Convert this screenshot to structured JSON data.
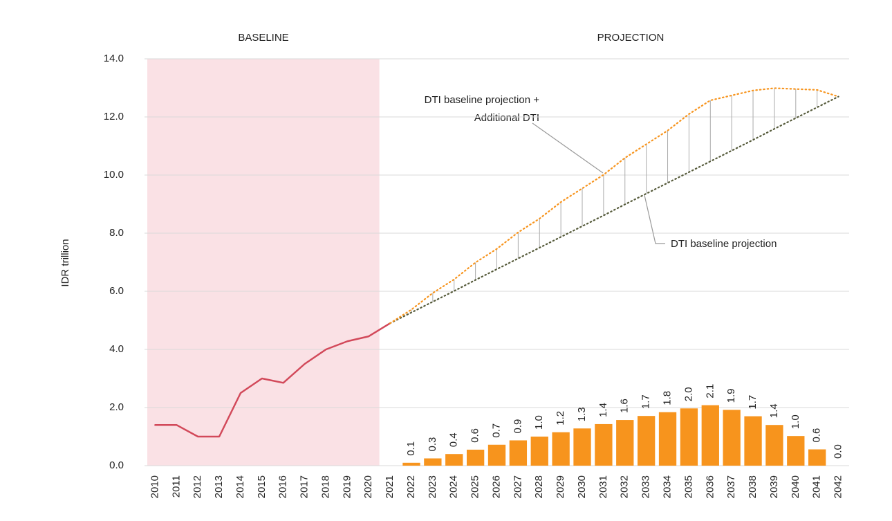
{
  "chart_data": {
    "type": "bar",
    "y_label": "IDR trillion",
    "regions": [
      "BASELINE",
      "PROJECTION"
    ],
    "annotations": [
      "DTI baseline projection +",
      "Additional DTI",
      "DTI baseline projection"
    ],
    "categories": [
      "2010",
      "2011",
      "2012",
      "2013",
      "2014",
      "2015",
      "2016",
      "2017",
      "2018",
      "2019",
      "2020",
      "2021",
      "2022",
      "2023",
      "2024",
      "2025",
      "2026",
      "2027",
      "2028",
      "2029",
      "2030",
      "2031",
      "2032",
      "2033",
      "2034",
      "2035",
      "2036",
      "2037",
      "2038",
      "2039",
      "2040",
      "2041",
      "2042"
    ],
    "ylim": [
      0,
      14
    ],
    "yticks": [
      {
        "value": 0,
        "label": "0.0"
      },
      {
        "value": 2,
        "label": "2.0"
      },
      {
        "value": 4,
        "label": "4.0"
      },
      {
        "value": 6,
        "label": "6.0"
      },
      {
        "value": 8,
        "label": "8.0"
      },
      {
        "value": 10,
        "label": "10.0"
      },
      {
        "value": 12,
        "label": "12.0"
      },
      {
        "value": 14,
        "label": "14.0"
      }
    ],
    "grid": true,
    "baseline_region": [
      0,
      10
    ],
    "series": [
      {
        "type": "line",
        "color": "#d2495a",
        "style": "solid",
        "values": [
          1.4,
          1.4,
          1.0,
          1.0,
          2.5,
          3.0,
          2.85,
          3.5,
          4.0,
          4.28,
          4.45,
          4.9,
          null,
          null,
          null,
          null,
          null,
          null,
          null,
          null,
          null,
          null,
          null,
          null,
          null,
          null,
          null,
          null,
          null,
          null,
          null,
          null,
          null
        ]
      },
      {
        "type": "line",
        "color": "#555a3a",
        "style": "dotted",
        "values": [
          null,
          null,
          null,
          null,
          null,
          null,
          null,
          null,
          null,
          null,
          null,
          4.9,
          5.27,
          5.64,
          6.01,
          6.39,
          6.76,
          7.13,
          7.5,
          7.87,
          8.24,
          8.61,
          8.99,
          9.36,
          9.73,
          10.1,
          10.47,
          10.84,
          11.21,
          11.59,
          11.96,
          12.33,
          12.7
        ]
      },
      {
        "type": "line",
        "color": "#f7941d",
        "style": "dotted",
        "values": [
          null,
          null,
          null,
          null,
          null,
          null,
          null,
          null,
          null,
          null,
          null,
          4.9,
          5.37,
          5.94,
          6.41,
          6.99,
          7.46,
          8.03,
          8.5,
          9.07,
          9.54,
          10.01,
          10.59,
          11.06,
          11.53,
          12.1,
          12.57,
          12.74,
          12.91,
          12.99,
          12.96,
          12.93,
          12.7
        ]
      },
      {
        "type": "bar",
        "color": "#f7941d",
        "values": [
          null,
          null,
          null,
          null,
          null,
          null,
          null,
          null,
          null,
          null,
          null,
          null,
          0.1,
          0.25,
          0.4,
          0.55,
          0.72,
          0.87,
          1.0,
          1.15,
          1.28,
          1.43,
          1.57,
          1.71,
          1.84,
          1.97,
          2.08,
          1.92,
          1.7,
          1.4,
          1.02,
          0.56,
          0.0
        ],
        "value_labels": [
          null,
          null,
          null,
          null,
          null,
          null,
          null,
          null,
          null,
          null,
          null,
          null,
          "0.1",
          "0.3",
          "0.4",
          "0.6",
          "0.7",
          "0.9",
          "1.0",
          "1.2",
          "1.3",
          "1.4",
          "1.6",
          "1.7",
          "1.8",
          "2.0",
          "2.1",
          "1.9",
          "1.7",
          "1.4",
          "1.0",
          "0.6",
          "0.0"
        ]
      }
    ]
  }
}
